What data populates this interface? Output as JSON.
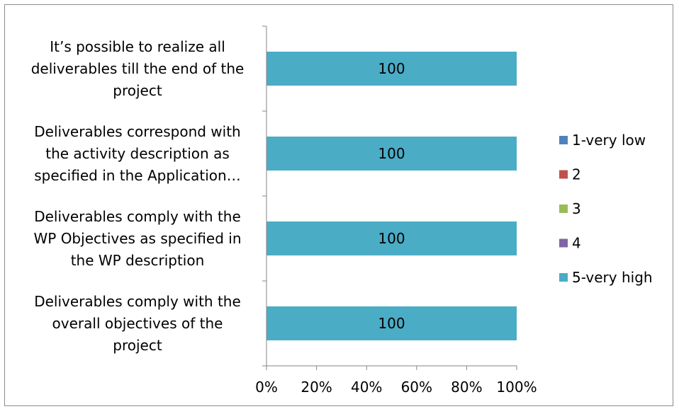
{
  "chart_data": {
    "type": "bar",
    "orientation": "horizontal",
    "stacked": "100%",
    "categories": [
      [
        "It’s possible to realize all",
        "deliverables till the end of the",
        "project"
      ],
      [
        "Deliverables correspond with",
        "the activity description as",
        "specified in the Application…"
      ],
      [
        "Deliverables comply with the",
        "WP Objectives as specified in",
        "the WP description"
      ],
      [
        "Deliverables comply with the",
        "overall objectives of the",
        "project"
      ]
    ],
    "series": [
      {
        "name": "1-very low",
        "color": "#4f81bd",
        "values": [
          0,
          0,
          0,
          0
        ]
      },
      {
        "name": "2",
        "color": "#c0504d",
        "values": [
          0,
          0,
          0,
          0
        ]
      },
      {
        "name": "3",
        "color": "#9bbb59",
        "values": [
          0,
          0,
          0,
          0
        ]
      },
      {
        "name": "4",
        "color": "#8064a2",
        "values": [
          0,
          0,
          0,
          0
        ]
      },
      {
        "name": "5-very high",
        "color": "#4bacc6",
        "values": [
          100,
          100,
          100,
          100
        ]
      }
    ],
    "data_labels": [
      "100",
      "100",
      "100",
      "100"
    ],
    "x_ticks": [
      "0%",
      "20%",
      "40%",
      "60%",
      "80%",
      "100%"
    ],
    "xlim": [
      0,
      100
    ],
    "grid": false,
    "legend_position": "right"
  }
}
